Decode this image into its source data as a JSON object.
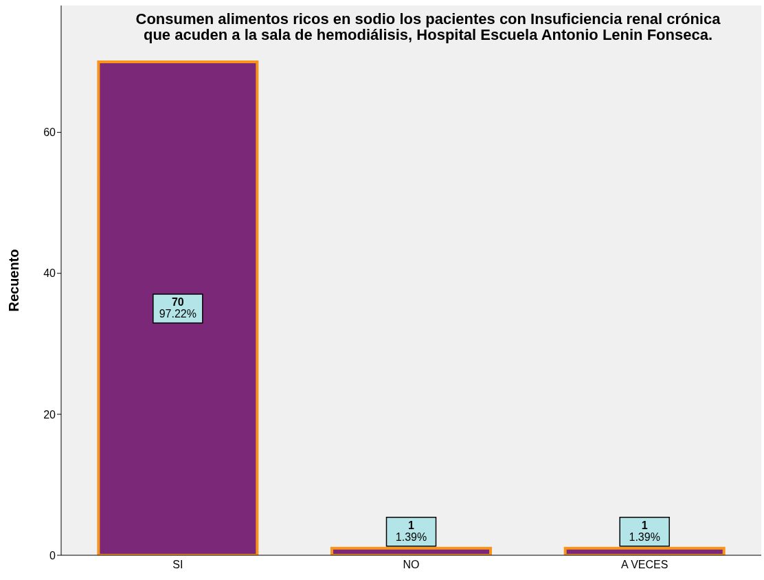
{
  "chart_data": {
    "type": "bar",
    "title": "Consumen alimentos ricos en sodio los pacientes con Insuficiencia renal crónica que acuden a la sala de hemodiálisis, Hospital Escuela Antonio Lenin Fonseca.",
    "ylabel": "Recuento",
    "categories": [
      "SI",
      "NO",
      "A VECES"
    ],
    "values": [
      70,
      1,
      1
    ],
    "color": "#7b2878",
    "value_labels": [
      "70\n97.22%",
      "1\n1.39%",
      "1\n1.39%"
    ],
    "ylim": [
      0,
      78
    ],
    "yticks": [
      0,
      20,
      40,
      60
    ],
    "grid": false
  }
}
